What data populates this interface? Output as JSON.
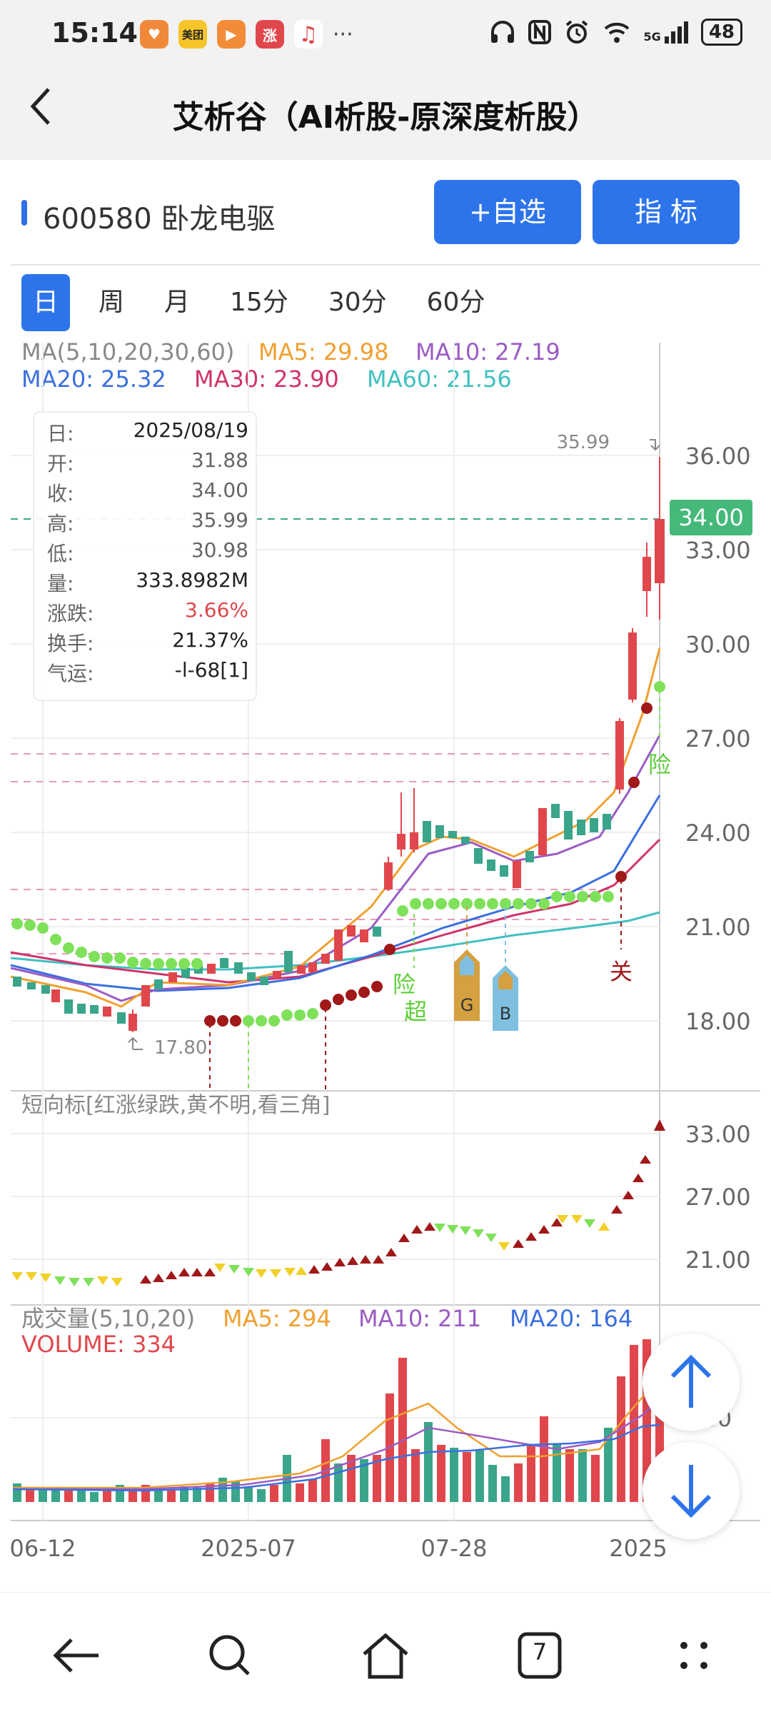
{
  "status_bar": {
    "time": "15:14",
    "app_icons": [
      "heart-app",
      "美团",
      "play-app",
      "涨",
      "music-app"
    ],
    "more": "···",
    "network": "5G",
    "battery": "48"
  },
  "header": {
    "title": "艾析谷（AI析股-原深度析股）",
    "back_icon": "chevron-left-icon"
  },
  "stock": {
    "code_name": "600580 卧龙电驱",
    "add_watch_label": "+自选",
    "indicator_label": "指  标"
  },
  "period_tabs": [
    "日",
    "周",
    "月",
    "15分",
    "30分",
    "60分"
  ],
  "active_tab": "日",
  "ma_legend": {
    "label": "MA(5,10,20,30,60)",
    "ma5": "MA5: 29.98",
    "ma10": "MA10: 27.19",
    "ma20": "MA20: 25.32",
    "ma30": "MA30: 23.90",
    "ma60": "MA60: 21.56"
  },
  "info_box": {
    "rows": [
      {
        "k": "日:",
        "v": "2025/08/19"
      },
      {
        "k": "开:",
        "v": "31.88"
      },
      {
        "k": "收:",
        "v": "34.00"
      },
      {
        "k": "高:",
        "v": "35.99"
      },
      {
        "k": "低:",
        "v": "30.98"
      },
      {
        "k": "量:",
        "v": "333.8982M"
      },
      {
        "k": "涨跌:",
        "v": "3.66%"
      },
      {
        "k": "换手:",
        "v": "21.37%"
      },
      {
        "k": "气运:",
        "v": "-l-68[1]"
      }
    ]
  },
  "main_chart": {
    "high_label": "35.99",
    "low_label": "17.80",
    "current_price": "34.00",
    "y_ticks": [
      "36.00",
      "33.00",
      "30.00",
      "27.00",
      "24.00",
      "21.00",
      "18.00"
    ],
    "signals": {
      "xian1": "险",
      "chao": "超",
      "G": "G",
      "B": "B",
      "guan": "关",
      "xian2": "险"
    }
  },
  "short_indicator": {
    "title": "短向标[红涨绿跌,黄不明,看三角]",
    "y_ticks": [
      "33.00",
      "27.00",
      "21.00"
    ]
  },
  "volume": {
    "title": "成交量(5,10,20)",
    "ma5": "MA5: 294",
    "ma10": "MA10: 211",
    "ma20": "MA20: 164",
    "volume_label": "VOLUME: 334",
    "y_tick": "150"
  },
  "x_axis": [
    "06-12",
    "2025-07",
    "07-28",
    "2025"
  ],
  "colors": {
    "accent": "#2d74eb",
    "up": "#e0474c",
    "down": "#3aa58b",
    "ma5": "#f0a030",
    "ma10": "#9b5cc4",
    "ma20": "#3b6fe0",
    "ma30": "#d0336b",
    "ma60": "#40c0c0"
  },
  "navbar": {
    "tabs_count": "7",
    "icons": [
      "back-arrow-icon",
      "search-icon",
      "home-icon",
      "tabs-icon",
      "menu-dots-icon"
    ]
  }
}
